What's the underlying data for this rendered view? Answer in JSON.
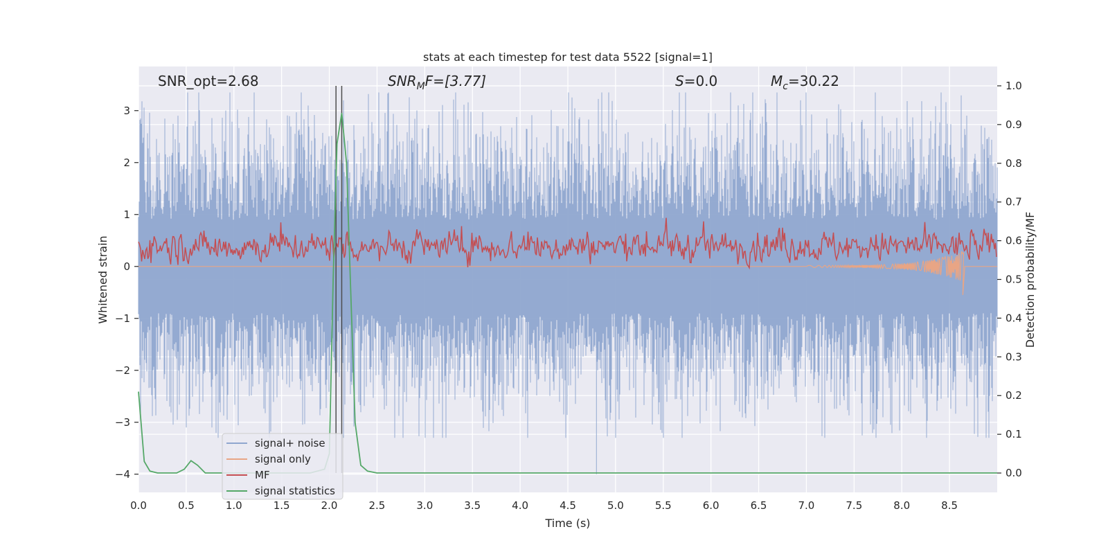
{
  "chart_data": {
    "type": "line",
    "title": "stats at each timestep for test data 5522 [signal=1]",
    "xlabel": "Time (s)",
    "ylabel_left": "Whitened strain",
    "ylabel_right": "Detection probability/MF",
    "xlim": [
      0.0,
      9.0
    ],
    "ylim_left": [
      -4.35,
      3.85
    ],
    "ylim_right": [
      -0.05,
      1.05
    ],
    "x_ticks": [
      "0.0",
      "0.5",
      "1.0",
      "1.5",
      "2.0",
      "2.5",
      "3.0",
      "3.5",
      "4.0",
      "4.5",
      "5.0",
      "5.5",
      "6.0",
      "6.5",
      "7.0",
      "7.5",
      "8.0",
      "8.5"
    ],
    "x_tick_values": [
      0,
      0.5,
      1,
      1.5,
      2,
      2.5,
      3,
      3.5,
      4,
      4.5,
      5,
      5.5,
      6,
      6.5,
      7,
      7.5,
      8,
      8.5
    ],
    "y_ticks_left": [
      "3",
      "2",
      "1",
      "0",
      "−1",
      "−2",
      "−3",
      "−4"
    ],
    "y_tick_values_left": [
      3,
      2,
      1,
      0,
      -1,
      -2,
      -3,
      -4
    ],
    "y_ticks_right": [
      "1.0",
      "0.9",
      "0.8",
      "0.7",
      "0.6",
      "0.5",
      "0.4",
      "0.3",
      "0.2",
      "0.1",
      "0.0"
    ],
    "y_tick_values_right": [
      1.0,
      0.9,
      0.8,
      0.7,
      0.6,
      0.5,
      0.4,
      0.3,
      0.2,
      0.1,
      0.0
    ],
    "annotations": {
      "snr_opt": "SNR_opt=2.68",
      "snr_mf_base": "SNR",
      "snr_mf_sub": "M",
      "snr_mf_rest": "F=[3.77]",
      "s_var": "S",
      "s_rest": "=0.0",
      "mc_var": "M",
      "mc_sub": "c",
      "mc_rest": "=30.22"
    },
    "vertical_markers": [
      2.07,
      2.13
    ],
    "legend": [
      {
        "label": "signal+ noise",
        "color": "#8fa6cf"
      },
      {
        "label": "signal only",
        "color": "#e8a585"
      },
      {
        "label": "MF",
        "color": "#c44e52"
      },
      {
        "label": "signal statistics",
        "color": "#55a868"
      }
    ],
    "series": [
      {
        "name": "signal+ noise",
        "axis": "left",
        "description": "whitened strain noise, amplitude roughly -3.3..3.3 with rare extremes near -4.0 at t≈4.8",
        "x_range": [
          0.0,
          9.0
        ],
        "approx_min": -4.0,
        "approx_max": 3.35
      },
      {
        "name": "signal only",
        "axis": "left",
        "description": "chirp signal near 0, growing toward merger",
        "x": [
          7.0,
          7.5,
          8.0,
          8.3,
          8.5,
          8.6,
          8.65
        ],
        "y": [
          0.0,
          0.02,
          0.05,
          0.1,
          0.2,
          -0.4,
          0.0
        ]
      },
      {
        "name": "MF",
        "axis": "right",
        "description": "matched-filter output fluctuating around 0.55-0.6",
        "x_range": [
          0.0,
          9.0
        ],
        "approx_min": 0.53,
        "approx_max": 0.68
      },
      {
        "name": "signal statistics",
        "axis": "right",
        "x": [
          0.0,
          0.06,
          0.12,
          0.2,
          0.3,
          0.4,
          0.48,
          0.55,
          0.62,
          0.7,
          1.0,
          1.5,
          1.8,
          1.95,
          2.0,
          2.04,
          2.08,
          2.13,
          2.18,
          2.22,
          2.27,
          2.33,
          2.4,
          2.5,
          3.0,
          5.0,
          7.0,
          9.0
        ],
        "y": [
          0.21,
          0.03,
          0.005,
          0.0,
          0.0,
          0.0,
          0.01,
          0.032,
          0.02,
          0.0,
          0.0,
          0.0,
          0.0,
          0.01,
          0.05,
          0.5,
          0.85,
          0.93,
          0.8,
          0.5,
          0.13,
          0.02,
          0.005,
          0.0,
          0.0,
          0.0,
          0.0,
          0.0
        ]
      }
    ]
  }
}
